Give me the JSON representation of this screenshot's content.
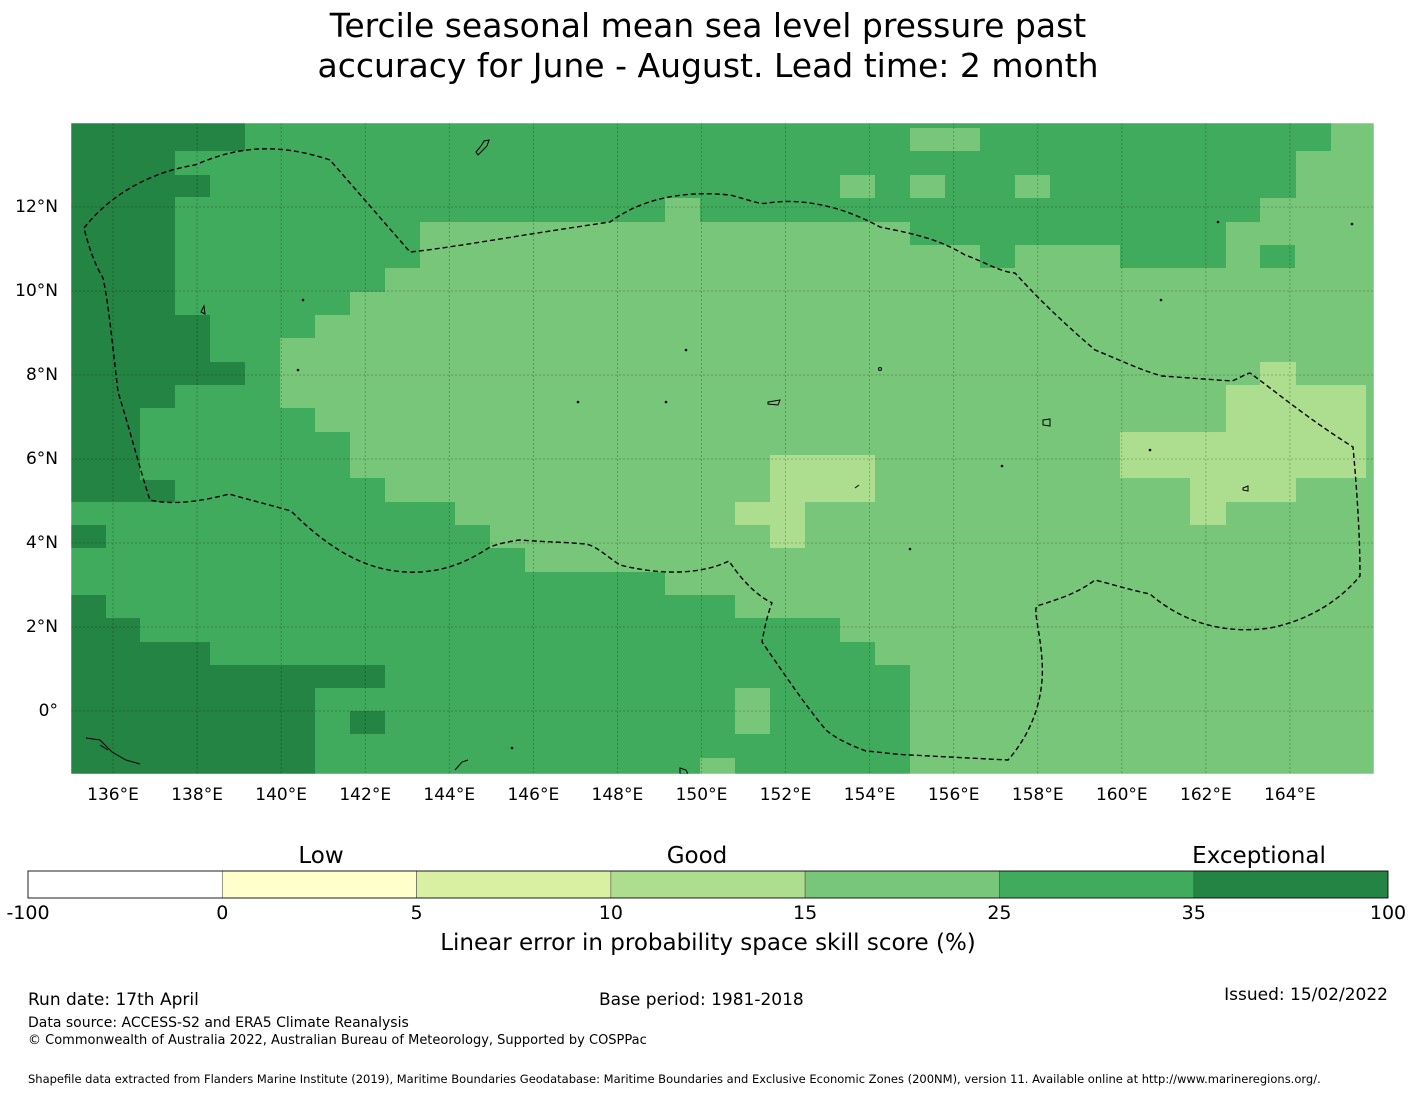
{
  "title": {
    "line1": "Tercile seasonal mean sea level pressure past",
    "line2": "accuracy for June - August. Lead time: 2 month"
  },
  "map": {
    "lon_ticks": [
      "136°E",
      "138°E",
      "140°E",
      "142°E",
      "144°E",
      "146°E",
      "148°E",
      "150°E",
      "152°E",
      "154°E",
      "156°E",
      "158°E",
      "160°E",
      "162°E",
      "164°E"
    ],
    "lat_ticks": [
      "12°N",
      "10°N",
      "8°N",
      "6°N",
      "4°N",
      "2°N",
      "0°"
    ],
    "lon_range": [
      135.0,
      166.0
    ],
    "lat_range": [
      -1.5,
      14.0
    ],
    "eez_boundary": "dashed"
  },
  "legend": {
    "categories": [
      "Low",
      "Good",
      "Exceptional"
    ],
    "boundaries": [
      "-100",
      "0",
      "5",
      "10",
      "15",
      "25",
      "35",
      "100"
    ],
    "colors": [
      "#ffffff",
      "#ffffcc",
      "#d9f0a3",
      "#addd8e",
      "#78c679",
      "#41ab5d",
      "#238443"
    ],
    "title": "Linear error in probability space skill score (%)"
  },
  "footer": {
    "run_date": "Run date: 17th April",
    "base_period": "Base period: 1981-2018",
    "issued": "Issued: 15/02/2022",
    "data_source": "Data source: ACCESS-S2 and ERA5 Climate Reanalysis",
    "copyright": "© Commonwealth of Australia 2022, Australian Bureau of Meteorology, Supported by COSPPac",
    "shapefile": "Shapefile data extracted from Flanders Marine Institute (2019), Maritime Boundaries Geodatabase: Maritime Boundaries and Exclusive Economic Zones (200NM), version 11. Available online at http://www.marineregions.org/."
  }
}
